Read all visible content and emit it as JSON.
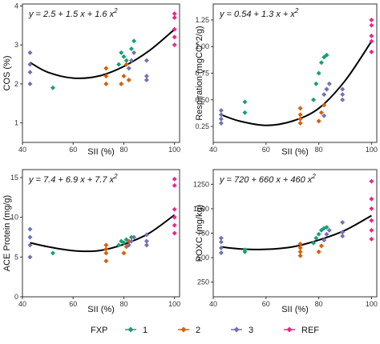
{
  "legend": {
    "title": "FXP",
    "items": [
      {
        "label": "1",
        "color": "#1b9e77"
      },
      {
        "label": "2",
        "color": "#d95f02"
      },
      {
        "label": "3",
        "color": "#7570b3"
      },
      {
        "label": "REF",
        "color": "#e7298a"
      }
    ]
  },
  "chart_data": [
    {
      "type": "scatter",
      "title": "",
      "equation": {
        "prefix": "y = 2.5 + 1.5 x + 1.6 x",
        "power": "2"
      },
      "xlabel": "SII (%)",
      "ylabel": "COS (%)",
      "xlim": [
        40,
        102
      ],
      "ylim": [
        0.5,
        4.05
      ],
      "xticks": [
        40,
        60,
        80,
        100
      ],
      "yticks": [
        1,
        2,
        3,
        4
      ],
      "grid": false,
      "fit": [
        [
          43,
          2.55
        ],
        [
          50,
          2.3
        ],
        [
          60,
          2.15
        ],
        [
          70,
          2.2
        ],
        [
          80,
          2.45
        ],
        [
          90,
          2.85
        ],
        [
          100,
          3.4
        ]
      ],
      "series": [
        {
          "name": "1",
          "color": "#1b9e77",
          "points": [
            [
              52,
              1.9
            ],
            [
              78,
              2.5
            ],
            [
              79,
              2.8
            ],
            [
              80,
              2.7
            ],
            [
              81,
              2.6
            ],
            [
              83,
              2.9
            ],
            [
              84,
              3.1
            ]
          ]
        },
        {
          "name": "2",
          "color": "#d95f02",
          "points": [
            [
              73,
              2.0
            ],
            [
              73,
              2.2
            ],
            [
              73,
              2.4
            ],
            [
              79,
              2.0
            ],
            [
              80,
              2.2
            ],
            [
              81,
              2.5
            ],
            [
              82,
              2.1
            ]
          ]
        },
        {
          "name": "3",
          "color": "#7570b3",
          "points": [
            [
              43,
              2.0
            ],
            [
              43,
              2.3
            ],
            [
              43,
              2.5
            ],
            [
              43,
              2.8
            ],
            [
              82,
              2.4
            ],
            [
              83,
              2.6
            ],
            [
              84,
              2.8
            ],
            [
              89,
              2.1
            ],
            [
              89,
              2.2
            ],
            [
              89,
              2.6
            ]
          ]
        },
        {
          "name": "REF",
          "color": "#e7298a",
          "points": [
            [
              100,
              3.0
            ],
            [
              100,
              3.2
            ],
            [
              100,
              3.4
            ],
            [
              100,
              3.7
            ],
            [
              100,
              3.8
            ]
          ]
        }
      ]
    },
    {
      "type": "scatter",
      "title": "",
      "equation": {
        "prefix": "y = 0.54 + 1.3 x + x",
        "power": "2"
      },
      "xlabel": "SII (%)",
      "ylabel": "Respiration (mgCO^2/g)",
      "xlim": [
        40,
        102
      ],
      "ylim": [
        0.1,
        1.4
      ],
      "xticks": [
        40,
        60,
        80,
        100
      ],
      "yticks": [
        0.25,
        0.5,
        0.75,
        1.0,
        1.25
      ],
      "yticklabels": [
        "0.25",
        "0.50",
        "0.75",
        "1.00",
        "1.25"
      ],
      "grid": false,
      "fit": [
        [
          43,
          0.36
        ],
        [
          50,
          0.3
        ],
        [
          60,
          0.26
        ],
        [
          70,
          0.3
        ],
        [
          80,
          0.42
        ],
        [
          90,
          0.68
        ],
        [
          100,
          1.05
        ]
      ],
      "series": [
        {
          "name": "1",
          "color": "#1b9e77",
          "points": [
            [
              52,
              0.38
            ],
            [
              52,
              0.48
            ],
            [
              78,
              0.5
            ],
            [
              79,
              0.65
            ],
            [
              80,
              0.75
            ],
            [
              81,
              0.85
            ],
            [
              82,
              0.9
            ],
            [
              83,
              0.92
            ],
            [
              83,
              0.6
            ]
          ]
        },
        {
          "name": "2",
          "color": "#d95f02",
          "points": [
            [
              73,
              0.28
            ],
            [
              73,
              0.32
            ],
            [
              73,
              0.36
            ],
            [
              73,
              0.42
            ],
            [
              80,
              0.3
            ],
            [
              81,
              0.38
            ],
            [
              82,
              0.45
            ]
          ]
        },
        {
          "name": "3",
          "color": "#7570b3",
          "points": [
            [
              43,
              0.28
            ],
            [
              43,
              0.32
            ],
            [
              43,
              0.36
            ],
            [
              43,
              0.4
            ],
            [
              82,
              0.35
            ],
            [
              82,
              0.55
            ],
            [
              83,
              0.6
            ],
            [
              84,
              0.65
            ],
            [
              89,
              0.5
            ],
            [
              89,
              0.55
            ],
            [
              89,
              0.6
            ]
          ]
        },
        {
          "name": "REF",
          "color": "#e7298a",
          "points": [
            [
              100,
              0.95
            ],
            [
              100,
              1.05
            ],
            [
              100,
              1.1
            ],
            [
              100,
              1.2
            ],
            [
              100,
              1.25
            ]
          ]
        }
      ]
    },
    {
      "type": "scatter",
      "title": "",
      "equation": {
        "prefix": "y = 7.4 + 6.9 x + 7.7 x",
        "power": "2"
      },
      "xlabel": "SII (%)",
      "ylabel": "ACE Protein (mg/g)",
      "xlim": [
        40,
        102
      ],
      "ylim": [
        0,
        16
      ],
      "xticks": [
        40,
        60,
        80,
        100
      ],
      "yticks": [
        0,
        5,
        10,
        15
      ],
      "grid": false,
      "fit": [
        [
          43,
          6.8
        ],
        [
          50,
          6.3
        ],
        [
          60,
          5.8
        ],
        [
          70,
          5.8
        ],
        [
          80,
          6.6
        ],
        [
          90,
          8.0
        ],
        [
          100,
          10.3
        ]
      ],
      "series": [
        {
          "name": "1",
          "color": "#1b9e77",
          "points": [
            [
              52,
              5.5
            ],
            [
              78,
              6.5
            ],
            [
              79,
              7.0
            ],
            [
              80,
              6.8
            ],
            [
              81,
              7.2
            ],
            [
              83,
              7.5
            ]
          ]
        },
        {
          "name": "2",
          "color": "#d95f02",
          "points": [
            [
              73,
              4.5
            ],
            [
              73,
              5.5
            ],
            [
              73,
              6.0
            ],
            [
              73,
              6.5
            ],
            [
              80,
              5.5
            ],
            [
              81,
              6.3
            ],
            [
              82,
              7.0
            ]
          ]
        },
        {
          "name": "3",
          "color": "#7570b3",
          "points": [
            [
              43,
              5.0
            ],
            [
              43,
              6.5
            ],
            [
              43,
              7.5
            ],
            [
              43,
              8.5
            ],
            [
              82,
              6.5
            ],
            [
              83,
              7.0
            ],
            [
              84,
              7.5
            ],
            [
              89,
              6.5
            ],
            [
              89,
              7.0
            ],
            [
              89,
              7.8
            ]
          ]
        },
        {
          "name": "REF",
          "color": "#e7298a",
          "points": [
            [
              100,
              8.0
            ],
            [
              100,
              9.0
            ],
            [
              100,
              10.0
            ],
            [
              100,
              11.0
            ],
            [
              100,
              14.0
            ],
            [
              100,
              14.8
            ]
          ]
        }
      ]
    },
    {
      "type": "scatter",
      "title": "",
      "equation": {
        "prefix": "y = 720 + 660 x + 460 x",
        "power": "2"
      },
      "xlabel": "SII (%)",
      "ylabel": "POXC (mg/kg)",
      "xlim": [
        40,
        102
      ],
      "ylim": [
        100,
        1400
      ],
      "xticks": [
        40,
        60,
        80,
        100
      ],
      "yticks": [
        250,
        500,
        750,
        1000,
        1250
      ],
      "grid": false,
      "fit": [
        [
          43,
          610
        ],
        [
          50,
          590
        ],
        [
          60,
          585
        ],
        [
          70,
          610
        ],
        [
          80,
          680
        ],
        [
          90,
          780
        ],
        [
          100,
          930
        ]
      ],
      "series": [
        {
          "name": "1",
          "color": "#1b9e77",
          "points": [
            [
              52,
              560
            ],
            [
              52,
              580
            ],
            [
              78,
              650
            ],
            [
              79,
              700
            ],
            [
              80,
              740
            ],
            [
              81,
              780
            ],
            [
              82,
              800
            ],
            [
              83,
              810
            ]
          ]
        },
        {
          "name": "2",
          "color": "#d95f02",
          "points": [
            [
              73,
              520
            ],
            [
              73,
              560
            ],
            [
              73,
              600
            ],
            [
              73,
              640
            ],
            [
              80,
              560
            ],
            [
              81,
              620
            ],
            [
              82,
              680
            ]
          ]
        },
        {
          "name": "3",
          "color": "#7570b3",
          "points": [
            [
              43,
              550
            ],
            [
              43,
              600
            ],
            [
              43,
              660
            ],
            [
              43,
              700
            ],
            [
              82,
              680
            ],
            [
              83,
              740
            ],
            [
              84,
              780
            ],
            [
              89,
              720
            ],
            [
              89,
              760
            ],
            [
              89,
              860
            ]
          ]
        },
        {
          "name": "REF",
          "color": "#e7298a",
          "points": [
            [
              100,
              690
            ],
            [
              100,
              780
            ],
            [
              100,
              880
            ],
            [
              100,
              1000
            ],
            [
              100,
              1100
            ],
            [
              100,
              1280
            ]
          ]
        }
      ]
    }
  ]
}
